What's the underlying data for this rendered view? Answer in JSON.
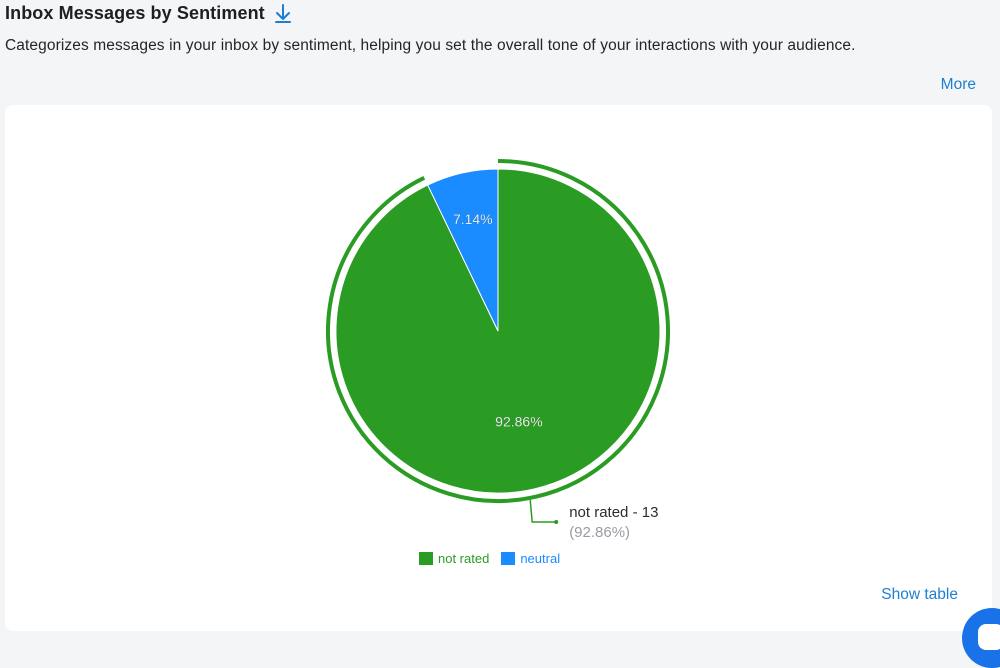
{
  "header": {
    "title": "Inbox Messages by Sentiment",
    "description": "Categorizes messages in your inbox by sentiment, helping you set the overall tone of your interactions with your audience.",
    "more_label": "More",
    "download_icon": "download-arrow-icon"
  },
  "chart_data": {
    "type": "pie",
    "title": "",
    "slices": [
      {
        "name": "not rated",
        "value": 13,
        "percent_label": "92.86%",
        "color": "#2a9c24"
      },
      {
        "name": "neutral",
        "value": 1,
        "percent_label": "7.14%",
        "color": "#1a8cff"
      }
    ],
    "highlighted_slice": "not rated",
    "tooltip": {
      "name": "not rated",
      "value_text": "not rated - 13",
      "percent_text": "(92.86%)"
    },
    "legend_position": "bottom-center"
  },
  "footer": {
    "show_table_label": "Show table",
    "chat_icon": "chat-launcher-icon"
  },
  "colors": {
    "link": "#1e7fd1",
    "not_rated": "#2a9c24",
    "neutral": "#1a8cff"
  }
}
